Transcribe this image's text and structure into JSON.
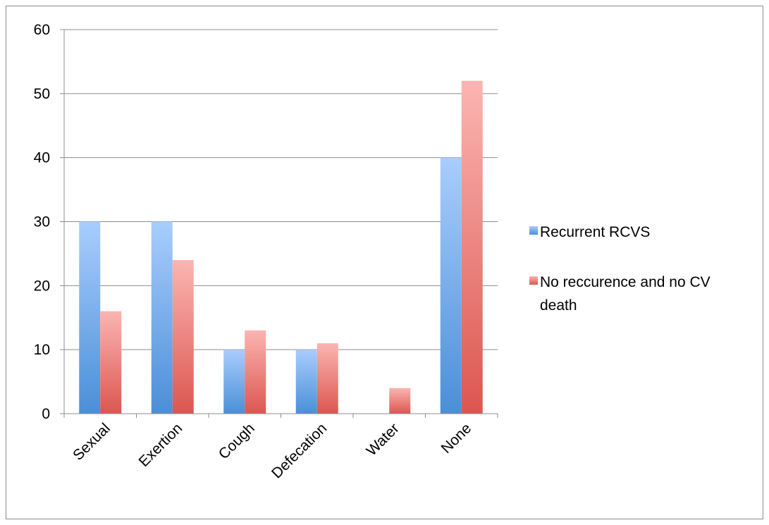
{
  "chart_data": {
    "type": "bar",
    "title": "",
    "xlabel": "",
    "ylabel": "",
    "categories": [
      "Sexual",
      "Exertion",
      "Cough",
      "Defecation",
      "Water",
      "None"
    ],
    "series": [
      {
        "name": "Recurrent RCVS",
        "values": [
          30,
          30,
          10,
          10,
          0,
          40
        ]
      },
      {
        "name": "No reccurence and no CV death",
        "values": [
          16,
          24,
          13,
          11,
          4,
          52
        ]
      }
    ],
    "ylim": [
      0,
      60
    ],
    "yticks": [
      0,
      10,
      20,
      30,
      40,
      50,
      60
    ],
    "grid": true,
    "legend_position": "right"
  },
  "colors": {
    "series_1_light": "#a9cdfd",
    "series_1_dark": "#4a8fd8",
    "series_2_light": "#fbb5b2",
    "series_2_dark": "#dc5650",
    "gridline": "#8c8c8c",
    "axis": "#8c8c8c"
  },
  "legend": {
    "items": [
      {
        "lines": [
          "Recurrent RCVS"
        ]
      },
      {
        "lines": [
          "No reccurence and no CV",
          "death"
        ]
      }
    ]
  }
}
